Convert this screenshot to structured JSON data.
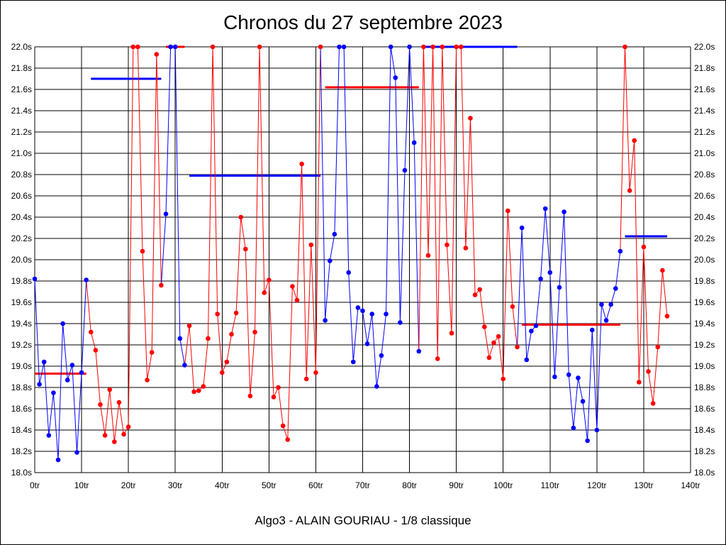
{
  "chart_data": {
    "type": "line",
    "title": "Chronos du 27 septembre 2023",
    "footer": "Algo3 - ALAIN GOURIAU - 1/8 classique",
    "xlabel": "",
    "ylabel": "",
    "xlim": [
      0,
      140
    ],
    "ylim": [
      18.0,
      22.0
    ],
    "grid": true,
    "x_ticks": [
      "0tr",
      "10tr",
      "20tr",
      "30tr",
      "40tr",
      "50tr",
      "60tr",
      "70tr",
      "80tr",
      "90tr",
      "100tr",
      "110tr",
      "120tr",
      "130tr",
      "140tr"
    ],
    "y_ticks": [
      "18.0s",
      "18.2s",
      "18.4s",
      "18.6s",
      "18.8s",
      "19.0s",
      "19.2s",
      "19.4s",
      "19.6s",
      "19.8s",
      "20.0s",
      "20.2s",
      "20.4s",
      "20.6s",
      "20.8s",
      "21.0s",
      "21.2s",
      "21.4s",
      "21.6s",
      "21.8s",
      "22.0s"
    ],
    "colors": {
      "red": "#ff0000",
      "blue": "#0000ff",
      "grid": "#000000"
    },
    "series": [
      {
        "color": "blue",
        "points": [
          [
            0,
            19.82
          ],
          [
            1,
            18.83
          ],
          [
            2,
            19.04
          ],
          [
            3,
            18.35
          ],
          [
            4,
            18.75
          ],
          [
            5,
            18.12
          ],
          [
            6,
            19.4
          ],
          [
            7,
            18.87
          ],
          [
            8,
            19.01
          ],
          [
            9,
            18.19
          ],
          [
            10,
            18.94
          ],
          [
            11,
            19.81
          ]
        ]
      },
      {
        "color": "red",
        "points": [
          [
            12,
            19.32
          ],
          [
            13,
            19.15
          ],
          [
            14,
            18.64
          ],
          [
            15,
            18.35
          ],
          [
            16,
            18.78
          ],
          [
            17,
            18.29
          ],
          [
            18,
            18.66
          ],
          [
            19,
            18.36
          ],
          [
            20,
            18.43
          ],
          [
            21,
            22.0
          ],
          [
            22,
            22.0
          ],
          [
            23,
            20.08
          ],
          [
            24,
            18.87
          ],
          [
            25,
            19.13
          ],
          [
            26,
            21.93
          ],
          [
            27,
            19.76
          ]
        ]
      },
      {
        "color": "blue",
        "points": [
          [
            28,
            20.43
          ],
          [
            29,
            22.0
          ],
          [
            30,
            22.0
          ],
          [
            31,
            19.26
          ],
          [
            32,
            19.01
          ]
        ]
      },
      {
        "color": "red",
        "points": [
          [
            33,
            19.38
          ],
          [
            34,
            18.76
          ],
          [
            35,
            18.77
          ],
          [
            36,
            18.81
          ],
          [
            37,
            19.26
          ],
          [
            38,
            22.0
          ],
          [
            39,
            19.49
          ],
          [
            40,
            18.94
          ],
          [
            41,
            19.04
          ],
          [
            42,
            19.3
          ],
          [
            43,
            19.5
          ],
          [
            44,
            20.4
          ],
          [
            45,
            20.1
          ],
          [
            46,
            18.72
          ],
          [
            47,
            19.32
          ],
          [
            48,
            22.0
          ],
          [
            49,
            19.69
          ],
          [
            50,
            19.81
          ],
          [
            51,
            18.71
          ],
          [
            52,
            18.8
          ],
          [
            53,
            18.44
          ],
          [
            54,
            18.31
          ],
          [
            55,
            19.75
          ],
          [
            56,
            19.62
          ],
          [
            57,
            20.9
          ],
          [
            58,
            18.88
          ],
          [
            59,
            20.14
          ],
          [
            60,
            18.94
          ],
          [
            61,
            22.0
          ]
        ]
      },
      {
        "color": "blue",
        "points": [
          [
            62,
            19.43
          ],
          [
            63,
            19.99
          ],
          [
            64,
            20.24
          ],
          [
            65,
            22.0
          ],
          [
            66,
            22.0
          ],
          [
            67,
            19.88
          ],
          [
            68,
            19.04
          ],
          [
            69,
            19.55
          ],
          [
            70,
            19.52
          ],
          [
            71,
            19.21
          ],
          [
            72,
            19.49
          ],
          [
            73,
            18.81
          ],
          [
            74,
            19.1
          ],
          [
            75,
            19.49
          ],
          [
            76,
            22.0
          ],
          [
            77,
            21.71
          ],
          [
            78,
            19.41
          ],
          [
            79,
            20.84
          ],
          [
            80,
            22.0
          ],
          [
            81,
            21.1
          ],
          [
            82,
            19.14
          ]
        ]
      },
      {
        "color": "red",
        "points": [
          [
            83,
            22.0
          ],
          [
            84,
            20.04
          ],
          [
            85,
            22.0
          ],
          [
            86,
            19.07
          ],
          [
            87,
            22.0
          ],
          [
            88,
            20.14
          ],
          [
            89,
            19.31
          ],
          [
            90,
            22.0
          ],
          [
            91,
            22.0
          ],
          [
            92,
            20.11
          ],
          [
            93,
            21.33
          ],
          [
            94,
            19.67
          ],
          [
            95,
            19.72
          ],
          [
            96,
            19.37
          ],
          [
            97,
            19.08
          ],
          [
            98,
            19.22
          ],
          [
            99,
            19.28
          ],
          [
            100,
            18.88
          ],
          [
            101,
            20.46
          ],
          [
            102,
            19.56
          ],
          [
            103,
            19.18
          ]
        ]
      },
      {
        "color": "blue",
        "points": [
          [
            104,
            20.3
          ],
          [
            105,
            19.06
          ],
          [
            106,
            19.33
          ],
          [
            107,
            19.38
          ],
          [
            108,
            19.82
          ],
          [
            109,
            20.48
          ],
          [
            110,
            19.88
          ],
          [
            111,
            18.9
          ],
          [
            112,
            19.74
          ],
          [
            113,
            20.45
          ],
          [
            114,
            18.92
          ],
          [
            115,
            18.42
          ],
          [
            116,
            18.89
          ],
          [
            117,
            18.67
          ],
          [
            118,
            18.3
          ],
          [
            119,
            19.34
          ],
          [
            120,
            18.4
          ],
          [
            121,
            19.58
          ],
          [
            122,
            19.43
          ],
          [
            123,
            19.58
          ],
          [
            124,
            19.73
          ],
          [
            125,
            20.08
          ]
        ]
      },
      {
        "color": "red",
        "points": [
          [
            126,
            22.0
          ],
          [
            127,
            20.65
          ],
          [
            128,
            21.12
          ],
          [
            129,
            18.85
          ],
          [
            130,
            20.12
          ],
          [
            131,
            18.95
          ],
          [
            132,
            18.65
          ],
          [
            133,
            19.18
          ],
          [
            134,
            19.9
          ],
          [
            135,
            19.47
          ]
        ]
      }
    ],
    "averages": [
      {
        "color": "red",
        "x": [
          0,
          11
        ],
        "y": 18.93
      },
      {
        "color": "blue",
        "x": [
          12,
          27
        ],
        "y": 21.7
      },
      {
        "color": "red",
        "x": [
          28,
          32
        ],
        "y": 22.0
      },
      {
        "color": "blue",
        "x": [
          33,
          61
        ],
        "y": 20.79
      },
      {
        "color": "red",
        "x": [
          62,
          82
        ],
        "y": 21.62
      },
      {
        "color": "blue",
        "x": [
          83,
          103
        ],
        "y": 22.0
      },
      {
        "color": "red",
        "x": [
          104,
          125
        ],
        "y": 19.39
      },
      {
        "color": "blue",
        "x": [
          126,
          135
        ],
        "y": 20.22
      }
    ]
  }
}
